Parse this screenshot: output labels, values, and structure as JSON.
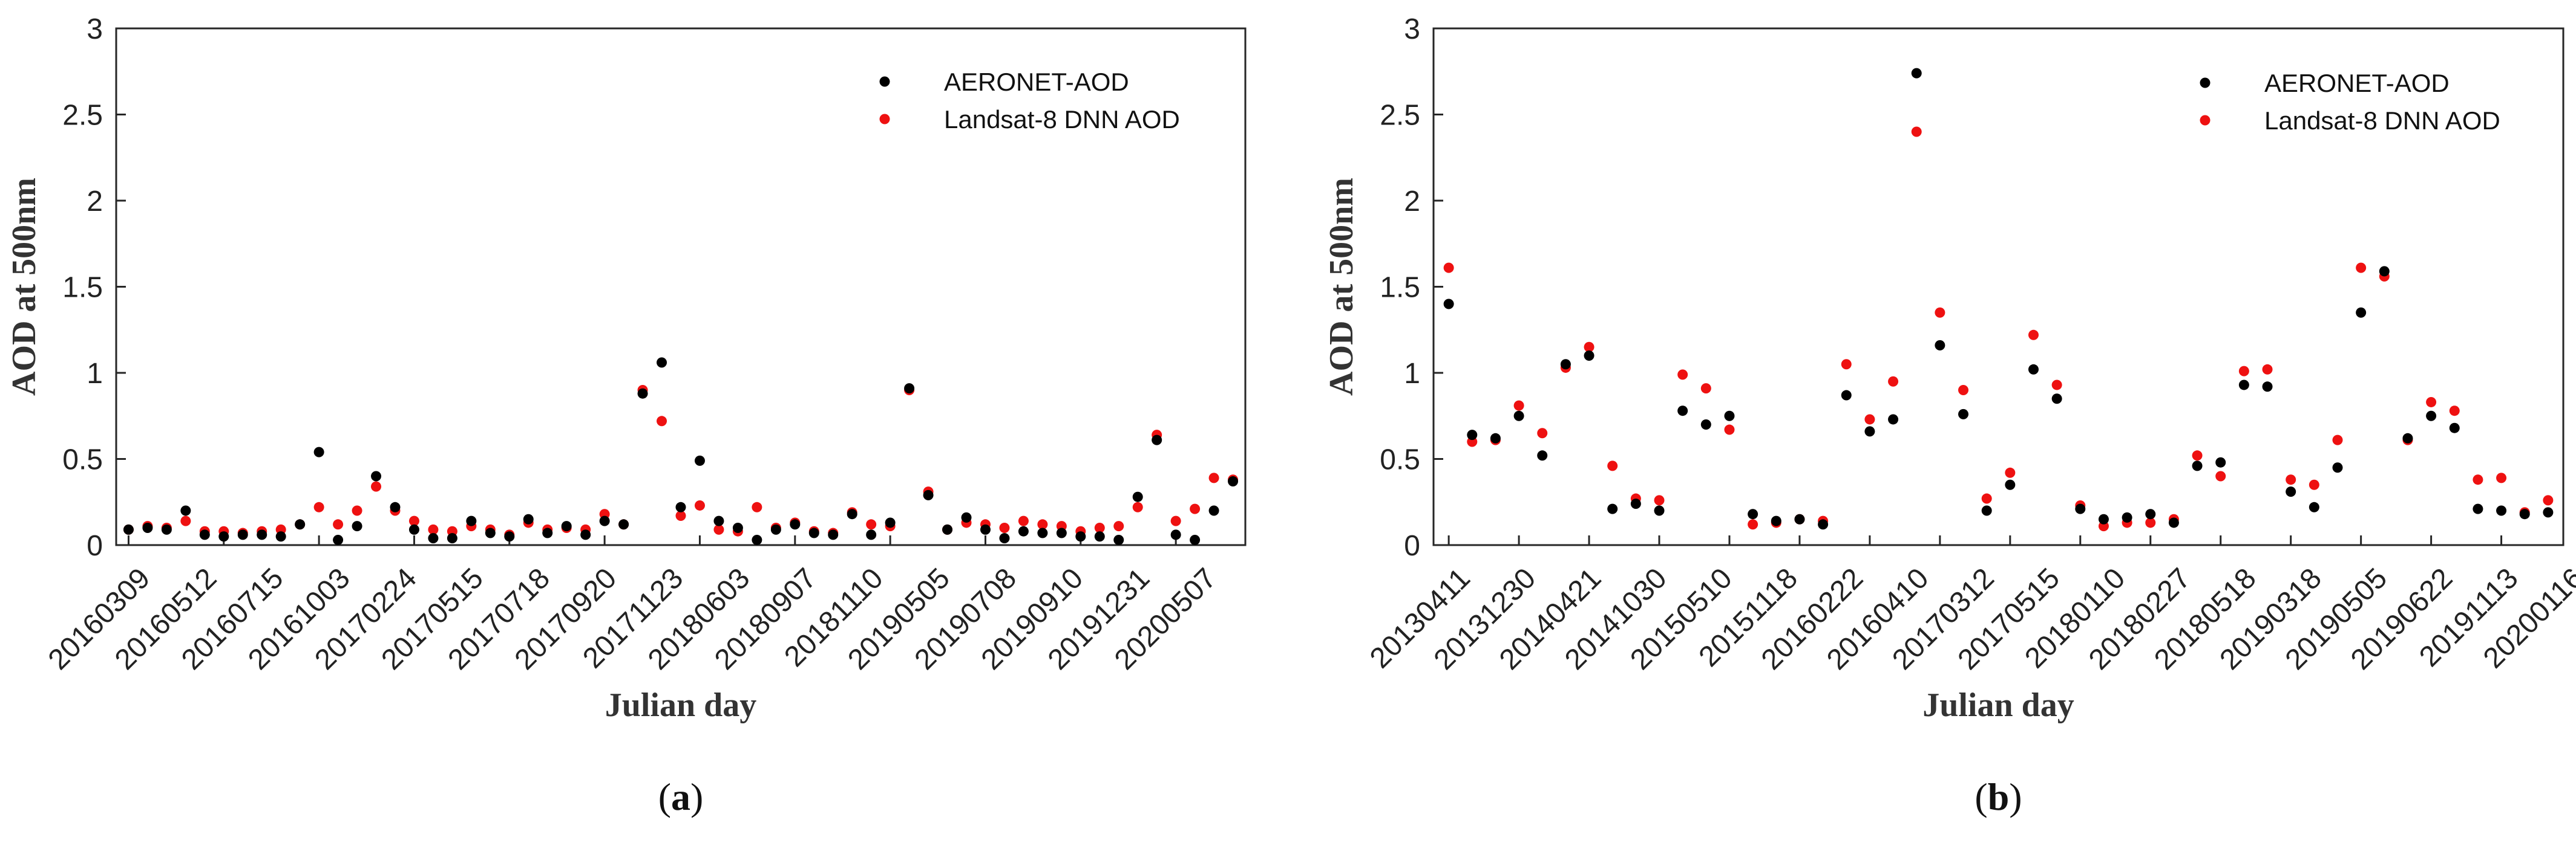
{
  "colors": {
    "aeronet": "#000000",
    "landsat": "#ee1111",
    "axis": "#262626"
  },
  "chart_data": [
    {
      "type": "scatter",
      "panel": "a",
      "caption": {
        "open": "(",
        "letter": "a",
        "close": ")"
      },
      "xlabel": "Julian day",
      "ylabel": "AOD at 500nm",
      "ylim": [
        0,
        3
      ],
      "yticks": [
        0,
        0.5,
        1,
        1.5,
        2,
        2.5,
        3
      ],
      "ytick_labels": [
        "0",
        "0.5",
        "1",
        "1.5",
        "2",
        "2.5",
        "3"
      ],
      "n_points": 59,
      "xtick_positions": [
        1,
        6,
        11,
        16,
        21,
        26,
        31,
        36,
        41,
        46,
        51,
        56
      ],
      "xtick_labels": [
        "20160309",
        "20160512",
        "20160715",
        "20161003",
        "20170224",
        "20170515",
        "20170718",
        "20170920",
        "20171123",
        "20180603",
        "20180907",
        "20181110",
        "20190505",
        "20190708",
        "20190910",
        "20191231",
        "20200507"
      ],
      "xtick_label_positions": [
        1,
        4.5,
        8,
        11.5,
        15,
        18.5,
        22,
        25.5,
        29,
        32.5,
        36,
        39.5,
        43,
        46.5,
        50,
        53.5,
        57
      ],
      "legend": {
        "placement": "top-right",
        "entries": [
          "AERONET-AOD",
          "Landsat-8 DNN AOD"
        ]
      },
      "series": [
        {
          "name": "AERONET-AOD",
          "values": [
            0.09,
            0.1,
            0.09,
            0.2,
            0.06,
            0.05,
            0.06,
            0.06,
            0.05,
            0.12,
            0.54,
            0.03,
            0.11,
            0.4,
            0.22,
            0.09,
            0.04,
            0.04,
            0.14,
            0.07,
            0.05,
            0.15,
            0.07,
            0.11,
            0.06,
            0.14,
            0.12,
            0.88,
            1.06,
            0.22,
            0.49,
            0.14,
            0.1,
            0.03,
            0.09,
            0.12,
            0.07,
            0.06,
            0.18,
            0.06,
            0.13,
            0.91,
            0.29,
            0.09,
            0.16,
            0.09,
            0.04,
            0.08,
            0.07,
            0.07,
            0.05,
            0.05,
            0.03,
            0.28,
            0.61,
            0.06,
            0.03,
            0.2,
            0.37
          ]
        },
        {
          "name": "Landsat-8 DNN AOD",
          "values": [
            0.09,
            0.11,
            0.1,
            0.14,
            0.08,
            0.08,
            0.07,
            0.08,
            0.09,
            0.12,
            0.22,
            0.12,
            0.2,
            0.34,
            0.2,
            0.14,
            0.09,
            0.08,
            0.11,
            0.09,
            0.06,
            0.13,
            0.09,
            0.1,
            0.09,
            0.18,
            0.12,
            0.9,
            0.72,
            0.17,
            0.23,
            0.09,
            0.08,
            0.22,
            0.1,
            0.13,
            0.08,
            0.07,
            0.19,
            0.12,
            0.11,
            0.9,
            0.31,
            0.09,
            0.13,
            0.12,
            0.1,
            0.14,
            0.12,
            0.11,
            0.08,
            0.1,
            0.11,
            0.22,
            0.64,
            0.14,
            0.21,
            0.39,
            0.38
          ]
        }
      ]
    },
    {
      "type": "scatter",
      "panel": "b",
      "caption": {
        "open": "(",
        "letter": "b",
        "close": ")"
      },
      "xlabel": "Julian day",
      "ylabel": "AOD at 500nm",
      "ylim": [
        0,
        3
      ],
      "yticks": [
        0,
        0.5,
        1,
        1.5,
        2,
        2.5,
        3
      ],
      "ytick_labels": [
        "0",
        "0.5",
        "1",
        "1.5",
        "2",
        "2.5",
        "3"
      ],
      "n_points": 48,
      "xtick_positions": [
        1,
        4,
        7,
        10,
        13,
        16,
        19,
        22,
        25,
        28,
        31,
        34,
        37,
        40,
        43,
        46
      ],
      "xtick_labels": [
        "20130411",
        "20131230",
        "20140421",
        "20141030",
        "20150510",
        "20151118",
        "20160222",
        "20160410",
        "20170312",
        "20170515",
        "20180110",
        "20180227",
        "20180518",
        "20190318",
        "20190505",
        "20190622",
        "20191113",
        "20200116"
      ],
      "xtick_label_positions": [
        1,
        3.8,
        6.6,
        9.4,
        12.2,
        15,
        17.8,
        20.6,
        23.4,
        26.2,
        29,
        31.8,
        34.6,
        37.4,
        40.2,
        43,
        45.8,
        48.6
      ],
      "legend": {
        "placement": "top-right",
        "entries": [
          "AERONET-AOD",
          "Landsat-8 DNN AOD"
        ]
      },
      "series": [
        {
          "name": "AERONET-AOD",
          "values": [
            1.4,
            0.64,
            0.62,
            0.75,
            0.52,
            1.05,
            1.1,
            0.21,
            0.24,
            0.2,
            0.78,
            0.7,
            0.75,
            0.18,
            0.14,
            0.15,
            0.12,
            0.87,
            0.66,
            0.73,
            2.74,
            1.16,
            0.76,
            0.2,
            0.35,
            1.02,
            0.85,
            0.21,
            0.15,
            0.16,
            0.18,
            0.13,
            0.46,
            0.48,
            0.93,
            0.92,
            0.31,
            0.22,
            0.45,
            1.35,
            1.59,
            0.62,
            0.75,
            0.68,
            0.21,
            0.2,
            0.18,
            0.19
          ]
        },
        {
          "name": "Landsat-8 DNN AOD",
          "values": [
            1.61,
            0.6,
            0.61,
            0.81,
            0.65,
            1.03,
            1.15,
            0.46,
            0.27,
            0.26,
            0.99,
            0.91,
            0.67,
            0.12,
            0.13,
            0.15,
            0.14,
            1.05,
            0.73,
            0.95,
            2.4,
            1.35,
            0.9,
            0.27,
            0.42,
            1.22,
            0.93,
            0.23,
            0.11,
            0.13,
            0.13,
            0.15,
            0.52,
            0.4,
            1.01,
            1.02,
            0.38,
            0.35,
            0.61,
            1.61,
            1.56,
            0.61,
            0.83,
            0.78,
            0.38,
            0.39,
            0.19,
            0.26
          ]
        }
      ]
    }
  ]
}
